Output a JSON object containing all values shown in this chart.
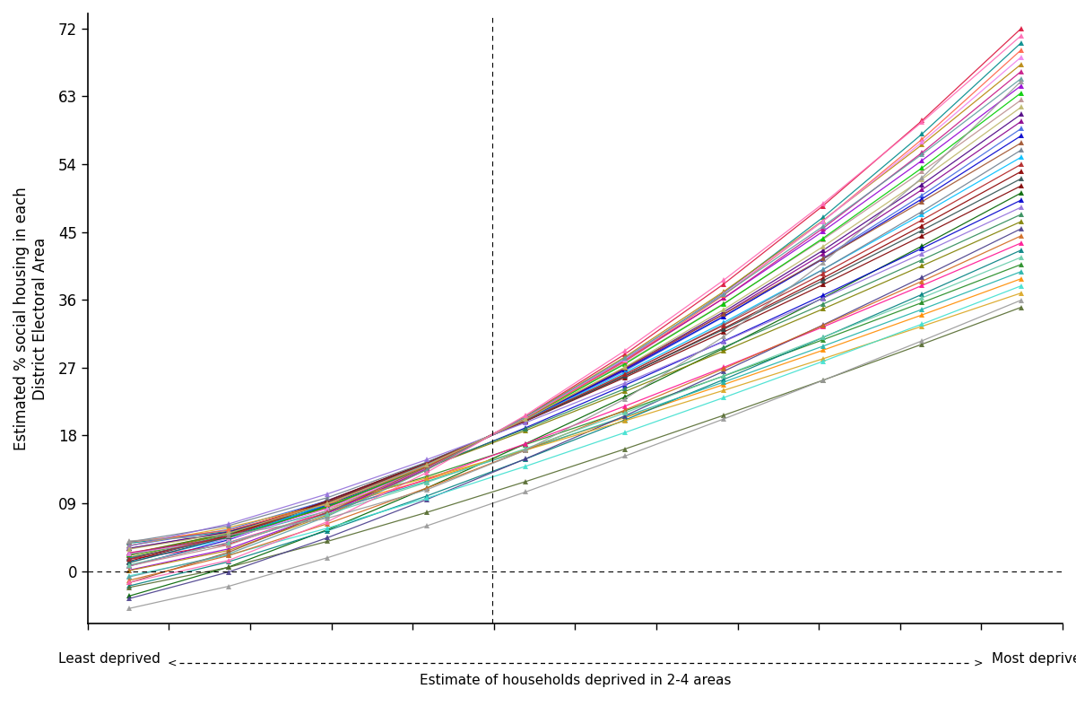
{
  "ylabel": "Estimated % social housing in each\nDistrict Electoral Area",
  "xlabel_center": "Estimate of households deprived in 2-4 areas",
  "xlabel_left": "Least deprived",
  "xlabel_right": "Most deprived",
  "xlim": [
    0.08,
    1.02
  ],
  "ylim": [
    -7,
    74
  ],
  "yticks": [
    0,
    9,
    18,
    27,
    36,
    45,
    54,
    63,
    72
  ],
  "ytick_labels": [
    "0",
    "09",
    "18",
    "27",
    "36",
    "45",
    "54",
    "63",
    "72"
  ],
  "vline_x": 0.47,
  "hline_y": 0,
  "num_series": 40,
  "colors": [
    "#8B0000",
    "#006400",
    "#0000CC",
    "#8B008B",
    "#FF8C00",
    "#808000",
    "#008B8B",
    "#4B0082",
    "#DC143C",
    "#228B22",
    "#4169E1",
    "#FF1493",
    "#2E8B57",
    "#9400D3",
    "#B8860B",
    "#008080",
    "#800000",
    "#0000CD",
    "#556B2F",
    "#C71585",
    "#20B2AA",
    "#483D8B",
    "#999999",
    "#BC8F8F",
    "#00BFFF",
    "#DAA520",
    "#00CC00",
    "#FF6347",
    "#40E0D0",
    "#EE82EE",
    "#A0522D",
    "#5F9EA0",
    "#D2691E",
    "#708090",
    "#2F4F4F",
    "#B22222",
    "#66CDAA",
    "#9370DB",
    "#BDB76B",
    "#FF69B4"
  ],
  "background_color": "#FFFFFF"
}
